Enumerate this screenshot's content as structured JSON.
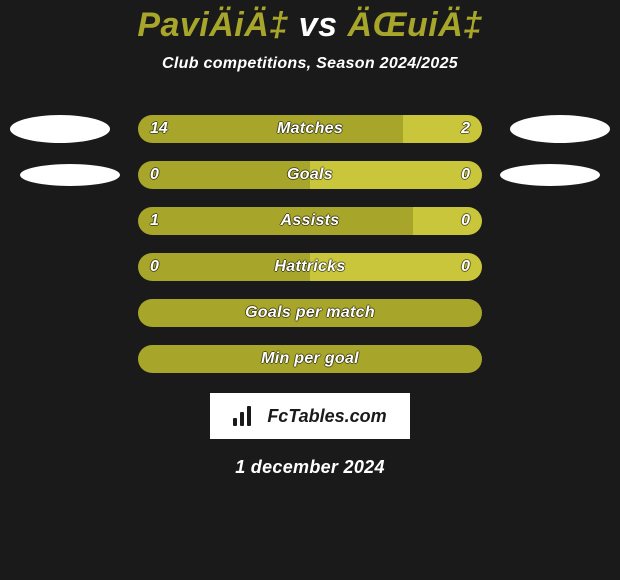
{
  "title": {
    "player1": "PaviÄiÄ‡",
    "vs": "vs",
    "player2": "ÄŒuiÄ‡"
  },
  "subtitle": "Club competitions, Season 2024/2025",
  "colors": {
    "left": "#a7a52a",
    "right": "#c9c63c",
    "bg": "#1a1a1a",
    "text": "#ffffff"
  },
  "barTrackWidth": 344,
  "rows": [
    {
      "label": "Matches",
      "leftVal": "14",
      "rightVal": "2",
      "leftPct": 77,
      "rightPct": 23,
      "showVals": true,
      "ellipses": "lg"
    },
    {
      "label": "Goals",
      "leftVal": "0",
      "rightVal": "0",
      "leftPct": 50,
      "rightPct": 50,
      "showVals": true,
      "ellipses": "sm"
    },
    {
      "label": "Assists",
      "leftVal": "1",
      "rightVal": "0",
      "leftPct": 80,
      "rightPct": 20,
      "showVals": true,
      "ellipses": null
    },
    {
      "label": "Hattricks",
      "leftVal": "0",
      "rightVal": "0",
      "leftPct": 50,
      "rightPct": 50,
      "showVals": true,
      "ellipses": null
    },
    {
      "label": "Goals per match",
      "leftVal": "",
      "rightVal": "",
      "leftPct": 100,
      "rightPct": 0,
      "showVals": false,
      "ellipses": null
    },
    {
      "label": "Min per goal",
      "leftVal": "",
      "rightVal": "",
      "leftPct": 100,
      "rightPct": 0,
      "showVals": false,
      "ellipses": null
    }
  ],
  "brand": "FcTables.com",
  "date": "1 december 2024"
}
